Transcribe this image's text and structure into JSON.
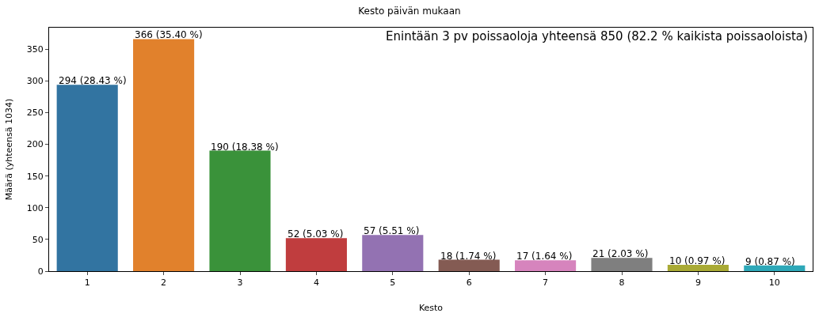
{
  "chart_data": {
    "type": "bar",
    "title": "Kesto päivän mukaan",
    "xlabel": "Kesto",
    "ylabel": "Määrä (yhteensä 1034)",
    "categories": [
      "1",
      "2",
      "3",
      "4",
      "5",
      "6",
      "7",
      "8",
      "9",
      "10"
    ],
    "values": [
      294,
      366,
      190,
      52,
      57,
      18,
      17,
      21,
      10,
      9
    ],
    "colors": [
      "#3274a1",
      "#e1812c",
      "#3a923a",
      "#c03d3e",
      "#9372b2",
      "#845b53",
      "#d684bd",
      "#7f7f7f",
      "#a9aa35",
      "#2ea8b8"
    ],
    "value_labels": [
      "294 (28.43 %)",
      "366 (35.40 %)",
      "190 (18.38 %)",
      "52 (5.03 %)",
      "57 (5.51 %)",
      "18 (1.74 %)",
      "17 (1.64 %)",
      "21 (2.03 %)",
      "10 (0.97 %)",
      "9 (0.87 %)"
    ],
    "annotations": [
      "Enintään 3 pv poissaoloja yhteensä 850 (82.2 % kaikista poissaoloista)"
    ],
    "ylim": [
      0,
      384
    ],
    "yticks": [
      0,
      50,
      100,
      150,
      200,
      250,
      300,
      350
    ]
  }
}
